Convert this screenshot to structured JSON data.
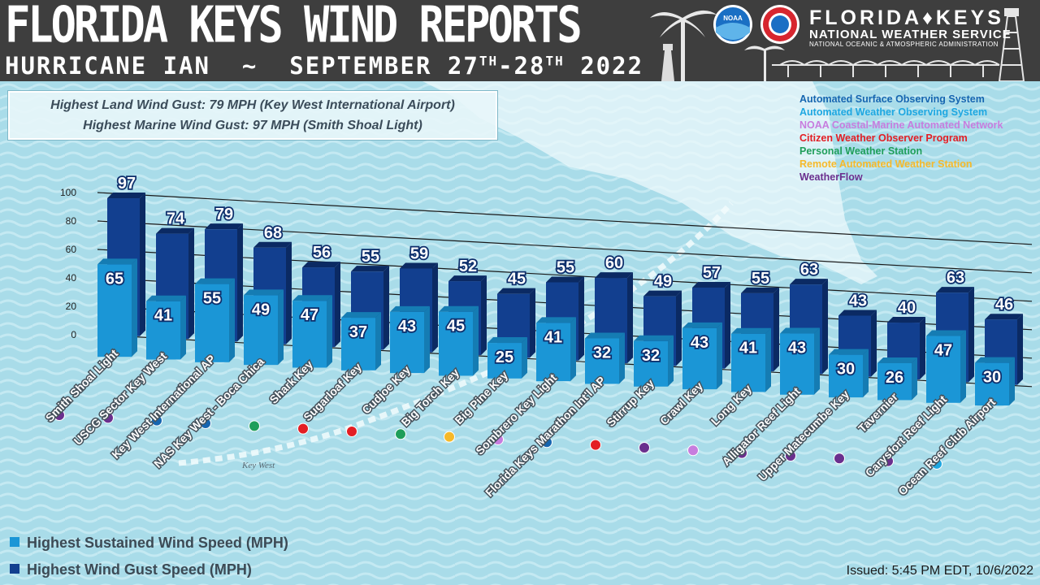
{
  "header": {
    "title": "FLORIDA KEYS WIND REPORTS",
    "subtitle_left": "HURRICANE IAN",
    "subtitle_sep": "~",
    "subtitle_date_a": "SEPTEMBER 27",
    "subtitle_sup_a": "TH",
    "subtitle_date_b": "-28",
    "subtitle_sup_b": "TH",
    "subtitle_year": "2022",
    "office_name": "FLORIDA♦KEYS",
    "org_name": "NATIONAL WEATHER SERVICE",
    "agency": "NATIONAL OCEANIC & ATMOSPHERIC ADMINISTRATION",
    "noaa_logo_text": "NOAA"
  },
  "highlights": {
    "land": "Highest Land Wind Gust: 79 MPH (Key West International Airport)",
    "marine": "Highest Marine Wind Gust: 97 MPH (Smith Shoal Light)"
  },
  "networks": [
    {
      "name": "Automated Surface Observing System",
      "color": "#1565b0"
    },
    {
      "name": "Automated Weather Observing System",
      "color": "#1ea7e1"
    },
    {
      "name": "NOAA Coastal-Marine Automated Network",
      "color": "#c77dde"
    },
    {
      "name": "Citizen Weather Observer Program",
      "color": "#e31e24"
    },
    {
      "name": "Personal Weather Station",
      "color": "#1f9e5a"
    },
    {
      "name": "Remote Automated Weather Station",
      "color": "#f6b92a"
    },
    {
      "name": "WeatherFlow",
      "color": "#6a2f8e"
    }
  ],
  "map_labels": {
    "key_west": "Key West"
  },
  "legend": {
    "sustained": "Highest Sustained Wind Speed (MPH)",
    "gust": "Highest Wind Gust Speed (MPH)"
  },
  "colors": {
    "sustained": "#1b96d6",
    "gust": "#123f8f"
  },
  "issued": "Issued: 5:45 PM EDT, 10/6/2022",
  "chart_data": {
    "type": "bar",
    "title": "FLORIDA KEYS WIND REPORTS",
    "ylim": [
      0,
      100
    ],
    "yticks": [
      0,
      20,
      40,
      60,
      80,
      100
    ],
    "categories": [
      "Smith Shoal Light",
      "USCG Sector Key West",
      "Key West International AP",
      "NAS Key West - Boca Chica",
      "Shark Key",
      "Sugarloaf Key",
      "Cudjoe Key",
      "Big Torch Key",
      "Big Pine Key",
      "Sombrero Key Light",
      "Florida Keys Marathon Int'l AP",
      "Stirrup Key",
      "Crawl Key",
      "Long Key",
      "Alligator Reef Light",
      "Upper Matecumbe Key",
      "Tavernier",
      "Carysfort Reef Light",
      "Ocean Reef Club Airport"
    ],
    "networks": [
      "WeatherFlow",
      "WeatherFlow",
      "Automated Surface Observing System",
      "Automated Surface Observing System",
      "Personal Weather Station",
      "Citizen Weather Observer Program",
      "Citizen Weather Observer Program",
      "Personal Weather Station",
      "Remote Automated Weather Station",
      "NOAA Coastal-Marine Automated Network",
      "Automated Surface Observing System",
      "Citizen Weather Observer Program",
      "WeatherFlow",
      "NOAA Coastal-Marine Automated Network",
      "WeatherFlow",
      "WeatherFlow",
      "WeatherFlow",
      "WeatherFlow",
      "Automated Weather Observing System"
    ],
    "series": [
      {
        "name": "Highest Sustained Wind Speed (MPH)",
        "values": [
          65,
          41,
          55,
          49,
          47,
          37,
          43,
          45,
          25,
          41,
          32,
          32,
          43,
          41,
          43,
          30,
          26,
          47,
          30
        ]
      },
      {
        "name": "Highest Wind Gust Speed (MPH)",
        "values": [
          97,
          74,
          79,
          68,
          56,
          55,
          59,
          52,
          45,
          55,
          60,
          49,
          57,
          55,
          63,
          43,
          40,
          63,
          46
        ]
      }
    ],
    "legend_position": "bottom-left",
    "grid": true
  }
}
